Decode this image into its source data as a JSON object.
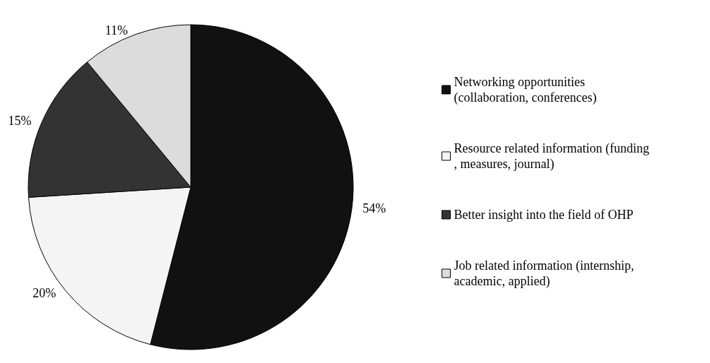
{
  "chart_data": {
    "type": "pie",
    "categories": [
      "Networking opportunities (collaboration, conferences)",
      "Resource related information (funding, measures, journal)",
      "Better insight into the field of OHP",
      "Job related information (internship, academic, applied)"
    ],
    "values": [
      54,
      20,
      15,
      11
    ],
    "colors": [
      "#111111",
      "#f4f4f4",
      "#333333",
      "#dcdcdc"
    ],
    "value_labels": [
      "54%",
      "20%",
      "15%",
      "11%"
    ],
    "legend": "right"
  }
}
